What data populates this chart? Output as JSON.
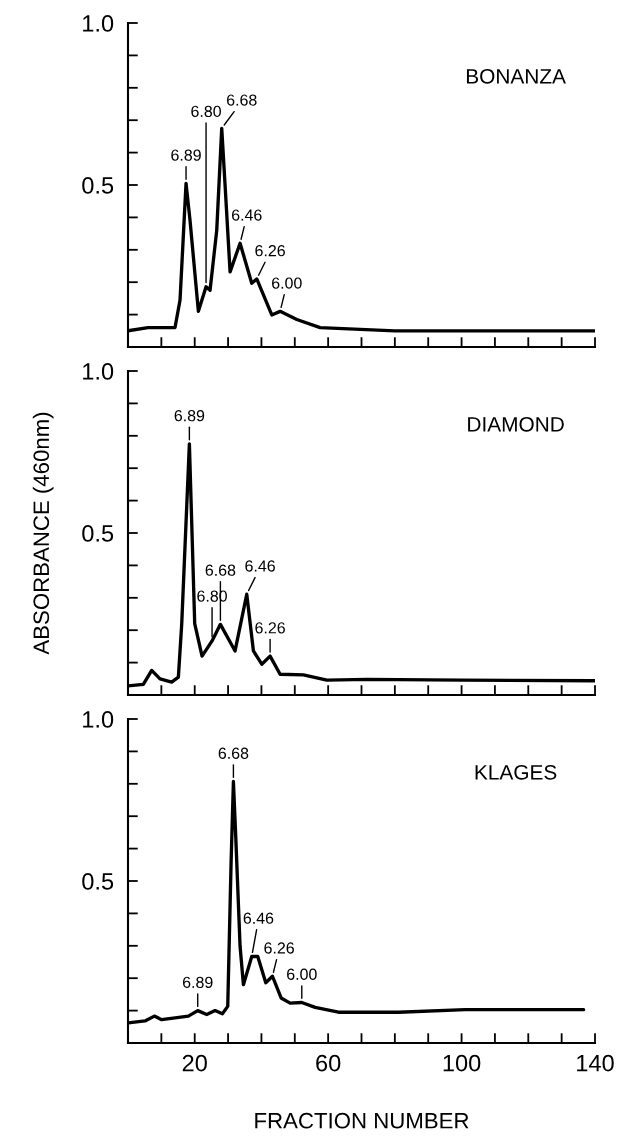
{
  "chart_data": [
    {
      "type": "line",
      "title": "BONANZA",
      "tick_labels": "y",
      "xlim": [
        0,
        140
      ],
      "ylim": [
        0,
        1.0
      ],
      "xticks": [
        {
          "value": 10,
          "label": null
        },
        {
          "value": 20,
          "label": null
        },
        {
          "value": 30,
          "label": null
        },
        {
          "value": 40,
          "label": null
        },
        {
          "value": 50,
          "label": null
        },
        {
          "value": 60,
          "label": null
        },
        {
          "value": 70,
          "label": null
        },
        {
          "value": 80,
          "label": null
        },
        {
          "value": 90,
          "label": null
        },
        {
          "value": 100,
          "label": null
        },
        {
          "value": 110,
          "label": null
        },
        {
          "value": 120,
          "label": null
        },
        {
          "value": 130,
          "label": null
        },
        {
          "value": 140,
          "label": null
        }
      ],
      "yticks": [
        {
          "value": 0.1,
          "label": null
        },
        {
          "value": 0.2,
          "label": null
        },
        {
          "value": 0.3,
          "label": null
        },
        {
          "value": 0.4,
          "label": null
        },
        {
          "value": 0.5,
          "label": "0.5"
        },
        {
          "value": 0.6,
          "label": null
        },
        {
          "value": 0.7,
          "label": null
        },
        {
          "value": 0.8,
          "label": null
        },
        {
          "value": 0.9,
          "label": null
        },
        {
          "value": 1.0,
          "label": "1.0"
        }
      ],
      "series": [
        {
          "color": "#000000",
          "x": [
            0,
            6,
            14.1,
            15.6,
            17.4,
            18.6,
            21.1,
            23.4,
            24.6,
            26.6,
            28.1,
            29.1,
            30.6,
            33.6,
            37.1,
            38.6,
            43.1,
            45.6,
            50.6,
            57.6,
            80,
            110,
            140
          ],
          "values": [
            0.05,
            0.06,
            0.06,
            0.145,
            0.505,
            0.39,
            0.11,
            0.186,
            0.175,
            0.36,
            0.675,
            0.5,
            0.232,
            0.32,
            0.197,
            0.21,
            0.099,
            0.11,
            0.085,
            0.06,
            0.05,
            0.05,
            0.05
          ]
        }
      ],
      "annotations": [
        {
          "text": "6.89",
          "x": 17.4,
          "y": 0.505
        },
        {
          "text": "6.80",
          "x": 23.4,
          "y": 0.186
        },
        {
          "text": "6.68",
          "x": 28.1,
          "y": 0.675
        },
        {
          "text": "6.46",
          "x": 33.6,
          "y": 0.32
        },
        {
          "text": "6.26",
          "x": 38.6,
          "y": 0.21
        },
        {
          "text": "6.00",
          "x": 45.6,
          "y": 0.11
        }
      ]
    },
    {
      "type": "line",
      "title": "DIAMOND",
      "ylabel": "ABSORBANCE (460nm)",
      "tick_labels": "y",
      "xlim": [
        0,
        140
      ],
      "ylim": [
        0,
        1.0
      ],
      "xticks": [
        {
          "value": 10,
          "label": null
        },
        {
          "value": 20,
          "label": null
        },
        {
          "value": 30,
          "label": null
        },
        {
          "value": 40,
          "label": null
        },
        {
          "value": 50,
          "label": null
        },
        {
          "value": 60,
          "label": null
        },
        {
          "value": 70,
          "label": null
        },
        {
          "value": 80,
          "label": null
        },
        {
          "value": 90,
          "label": null
        },
        {
          "value": 100,
          "label": null
        },
        {
          "value": 110,
          "label": null
        },
        {
          "value": 120,
          "label": null
        },
        {
          "value": 130,
          "label": null
        },
        {
          "value": 140,
          "label": null
        }
      ],
      "yticks": [
        {
          "value": 0.1,
          "label": null
        },
        {
          "value": 0.2,
          "label": null
        },
        {
          "value": 0.3,
          "label": null
        },
        {
          "value": 0.4,
          "label": null
        },
        {
          "value": 0.5,
          "label": "0.5"
        },
        {
          "value": 0.6,
          "label": null
        },
        {
          "value": 0.7,
          "label": null
        },
        {
          "value": 0.8,
          "label": null
        },
        {
          "value": 0.9,
          "label": null
        },
        {
          "value": 1.0,
          "label": "1.0"
        }
      ],
      "series": [
        {
          "color": "#000000",
          "x": [
            0,
            4.6,
            7.1,
            9.6,
            13.1,
            15.1,
            16.1,
            18.4,
            20.0,
            22.2,
            25.2,
            27.7,
            32.1,
            35.6,
            37.6,
            40.1,
            42.6,
            45.6,
            52.6,
            59.6,
            71.6,
            100,
            140
          ],
          "values": [
            0.028,
            0.033,
            0.076,
            0.05,
            0.04,
            0.055,
            0.218,
            0.775,
            0.22,
            0.12,
            0.167,
            0.218,
            0.136,
            0.311,
            0.136,
            0.095,
            0.12,
            0.064,
            0.062,
            0.046,
            0.048,
            0.046,
            0.044
          ]
        }
      ],
      "annotations": [
        {
          "text": "6.89",
          "x": 18.4,
          "y": 0.775
        },
        {
          "text": "6.80",
          "x": 25.2,
          "y": 0.167
        },
        {
          "text": "6.68",
          "x": 27.7,
          "y": 0.218
        },
        {
          "text": "6.46",
          "x": 35.6,
          "y": 0.311
        },
        {
          "text": "6.26",
          "x": 42.6,
          "y": 0.12
        }
      ]
    },
    {
      "type": "line",
      "title": "KLAGES",
      "xlabel": "FRACTION NUMBER",
      "xlim": [
        0,
        140
      ],
      "ylim": [
        0,
        1.0
      ],
      "xticks": [
        {
          "value": 10,
          "label": null
        },
        20,
        {
          "value": 30,
          "label": null
        },
        {
          "value": 40,
          "label": null
        },
        {
          "value": 50,
          "label": null
        },
        60,
        {
          "value": 70,
          "label": null
        },
        {
          "value": 80,
          "label": null
        },
        {
          "value": 90,
          "label": null
        },
        100,
        {
          "value": 110,
          "label": null
        },
        {
          "value": 120,
          "label": null
        },
        {
          "value": 130,
          "label": null
        },
        140
      ],
      "yticks": [
        {
          "value": 0.1,
          "label": null
        },
        {
          "value": 0.2,
          "label": null
        },
        {
          "value": 0.3,
          "label": null
        },
        {
          "value": 0.4,
          "label": null
        },
        {
          "value": 0.5,
          "label": "0.5"
        },
        {
          "value": 0.6,
          "label": null
        },
        {
          "value": 0.7,
          "label": null
        },
        {
          "value": 0.8,
          "label": null
        },
        {
          "value": 0.9,
          "label": null
        },
        {
          "value": 1.0,
          "label": "1.0"
        }
      ],
      "series": [
        {
          "color": "#000000",
          "x": [
            0.1,
            5.1,
            7.9,
            10.1,
            18.1,
            20.9,
            23.6,
            26.1,
            28.3,
            29.9,
            30.9,
            31.6,
            32.3,
            33.6,
            34.6,
            37.1,
            38.9,
            41.3,
            43.3,
            45.9,
            48.6,
            52.1,
            56.1,
            63.1,
            81.1,
            101.1,
            136.6
          ],
          "values": [
            0.062,
            0.068,
            0.083,
            0.072,
            0.083,
            0.1,
            0.088,
            0.1,
            0.09,
            0.113,
            0.555,
            0.807,
            0.637,
            0.298,
            0.18,
            0.267,
            0.267,
            0.186,
            0.206,
            0.139,
            0.123,
            0.125,
            0.11,
            0.095,
            0.095,
            0.103,
            0.103
          ]
        }
      ],
      "annotations": [
        {
          "text": "6.68",
          "x": 31.6,
          "y": 0.807
        },
        {
          "text": "6.46",
          "x": 37.1,
          "y": 0.267
        },
        {
          "text": "6.89",
          "x": 20.9,
          "y": 0.1
        },
        {
          "text": "6.26",
          "x": 43.3,
          "y": 0.206
        },
        {
          "text": "6.00",
          "x": 52.1,
          "y": 0.125
        }
      ]
    }
  ]
}
